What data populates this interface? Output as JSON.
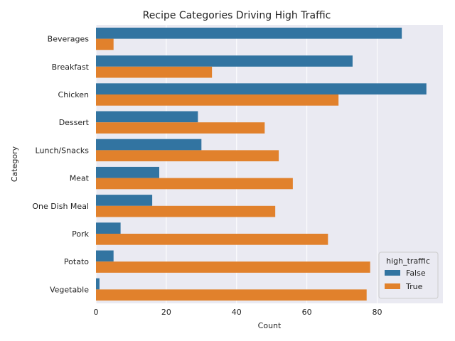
{
  "chart_data": {
    "type": "bar",
    "orientation": "horizontal",
    "title": "Recipe Categories Driving High Traffic",
    "xlabel": "Count",
    "ylabel": "Category",
    "categories": [
      "Beverages",
      "Breakfast",
      "Chicken",
      "Dessert",
      "Lunch/Snacks",
      "Meat",
      "One Dish Meal",
      "Pork",
      "Potato",
      "Vegetable"
    ],
    "series": [
      {
        "name": "False",
        "color": "#3274a1",
        "values": [
          87,
          73,
          94,
          29,
          30,
          18,
          16,
          7,
          5,
          1
        ]
      },
      {
        "name": "True",
        "color": "#e1812c",
        "values": [
          5,
          33,
          69,
          48,
          52,
          56,
          51,
          66,
          78,
          77
        ]
      }
    ],
    "xlim": [
      0,
      98.7
    ],
    "xticks": [
      0,
      20,
      40,
      60,
      80
    ],
    "grid": true,
    "background": "#eaeaf2",
    "legend": {
      "title": "high_traffic",
      "position": "lower-right"
    }
  }
}
